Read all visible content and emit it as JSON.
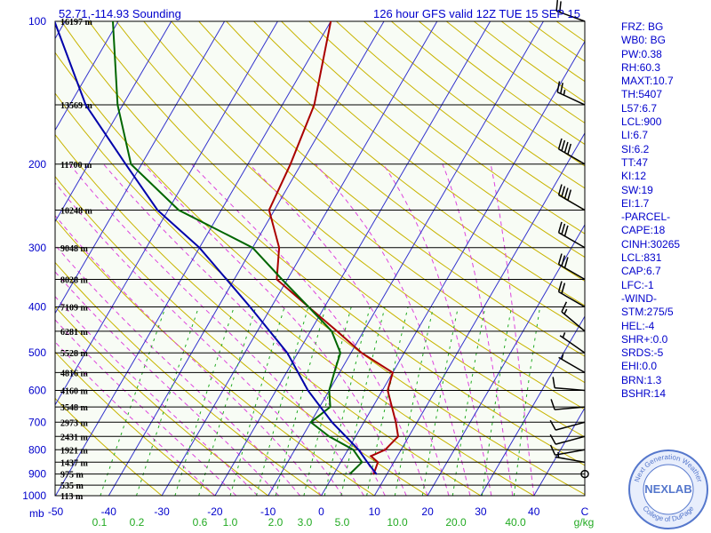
{
  "header": {
    "location": "52.71,-114.93 Sounding",
    "valid": "126 hour GFS valid 12Z TUE 15 SEP 15"
  },
  "colors": {
    "background": "#f8fcf5",
    "temperature": "#aa0000",
    "dewpoint": "#006600",
    "parcel": "#0000aa",
    "isobar": "#000000",
    "isotherm": "#3333cc",
    "dry_adiabat": "#c8b400",
    "moist_adiabat": "#dd44dd",
    "mixing_ratio": "#22aa22",
    "text": "#0000cc"
  },
  "indices": [
    "FRZ: BG",
    "WB0: BG",
    "PW:0.38",
    "RH:60.3",
    "MAXT:10.7",
    "TH:5407",
    "L57:6.7",
    "LCL:900",
    "LI:6.7",
    "SI:6.2",
    "TT:47",
    "KI:12",
    "SW:19",
    "EI:1.7",
    "-PARCEL-",
    "CAPE:18",
    "CINH:30265",
    "LCL:831",
    "CAP:6.7",
    "LFC:-1",
    "-WIND-",
    "STM:275/5",
    "HEL:-4",
    "SHR+:0.0",
    "SRDS:-5",
    "EHI:0.0",
    "BRN:1.3",
    "BSHR:14"
  ],
  "logo": {
    "top": "Next Generation Weather",
    "center": "NEXLAB",
    "bottom": "College of DuPage"
  },
  "chart_data": {
    "type": "skew-t",
    "title": "126 hour GFS valid 12Z TUE 15 SEP 15",
    "xlabel": "C",
    "ylabel": "mb",
    "ylim": [
      1000,
      100
    ],
    "xlim": [
      -50,
      50
    ],
    "log_pressure": true,
    "pressure_ticks": [
      100,
      200,
      300,
      400,
      500,
      600,
      700,
      800,
      900,
      1000
    ],
    "temperature_ticks": [
      -50,
      -40,
      -30,
      -20,
      -10,
      0,
      10,
      20,
      30,
      40
    ],
    "mixing_ratio_labels": [
      "0.1",
      "0.2",
      "0.6",
      "1.0",
      "2.0",
      "3.0",
      "5.0",
      "10.0",
      "20.0",
      "40.0",
      "g/kg"
    ],
    "height_labels": [
      {
        "p": 100,
        "label": "16197 m"
      },
      {
        "p": 150,
        "label": "13569 m"
      },
      {
        "p": 200,
        "label": "11700 m"
      },
      {
        "p": 250,
        "label": "10248 m"
      },
      {
        "p": 300,
        "label": "9048 m"
      },
      {
        "p": 350,
        "label": "8028 m"
      },
      {
        "p": 400,
        "label": "7109 m"
      },
      {
        "p": 450,
        "label": "6281 m"
      },
      {
        "p": 500,
        "label": "5528 m"
      },
      {
        "p": 550,
        "label": "4816 m"
      },
      {
        "p": 600,
        "label": "4160 m"
      },
      {
        "p": 650,
        "label": "3548 m"
      },
      {
        "p": 700,
        "label": "2973 m"
      },
      {
        "p": 750,
        "label": "2431 m"
      },
      {
        "p": 800,
        "label": "1921 m"
      },
      {
        "p": 850,
        "label": "1437 m"
      },
      {
        "p": 900,
        "label": "975 m"
      },
      {
        "p": 950,
        "label": "535 m"
      },
      {
        "p": 1000,
        "label": "113 m"
      }
    ],
    "series": [
      {
        "name": "temperature",
        "points": [
          [
            900,
            7.5
          ],
          [
            850,
            7
          ],
          [
            825,
            5
          ],
          [
            800,
            7
          ],
          [
            750,
            8
          ],
          [
            700,
            6
          ],
          [
            600,
            1
          ],
          [
            550,
            0
          ],
          [
            500,
            -8
          ],
          [
            450,
            -15
          ],
          [
            400,
            -23
          ],
          [
            350,
            -32
          ],
          [
            300,
            -35
          ],
          [
            250,
            -41
          ],
          [
            200,
            -42
          ],
          [
            150,
            -44
          ],
          [
            100,
            -50
          ]
        ]
      },
      {
        "name": "dewpoint",
        "points": [
          [
            900,
            3
          ],
          [
            850,
            4
          ],
          [
            800,
            1
          ],
          [
            750,
            -5
          ],
          [
            700,
            -10
          ],
          [
            650,
            -8
          ],
          [
            600,
            -10
          ],
          [
            550,
            -11
          ],
          [
            500,
            -12
          ],
          [
            450,
            -16
          ],
          [
            400,
            -23
          ],
          [
            350,
            -31
          ],
          [
            300,
            -40
          ],
          [
            250,
            -58
          ],
          [
            200,
            -72
          ],
          [
            150,
            -81
          ],
          [
            100,
            -91
          ]
        ]
      },
      {
        "name": "parcel",
        "points": [
          [
            900,
            8
          ],
          [
            850,
            5
          ],
          [
            800,
            2
          ],
          [
            700,
            -6
          ],
          [
            600,
            -14
          ],
          [
            500,
            -22
          ],
          [
            400,
            -34
          ],
          [
            300,
            -50
          ],
          [
            250,
            -62
          ],
          [
            200,
            -73
          ],
          [
            150,
            -87
          ],
          [
            100,
            -102
          ]
        ]
      }
    ],
    "wind_barbs": [
      {
        "p": 900,
        "dir": 290,
        "kt": 0
      },
      {
        "p": 850,
        "dir": 280,
        "kt": 5
      },
      {
        "p": 800,
        "dir": 260,
        "kt": 10
      },
      {
        "p": 750,
        "dir": 255,
        "kt": 10
      },
      {
        "p": 700,
        "dir": 255,
        "kt": 10
      },
      {
        "p": 650,
        "dir": 265,
        "kt": 10
      },
      {
        "p": 600,
        "dir": 275,
        "kt": 10
      },
      {
        "p": 550,
        "dir": 300,
        "kt": 5
      },
      {
        "p": 500,
        "dir": 305,
        "kt": 5
      },
      {
        "p": 450,
        "dir": 310,
        "kt": 15
      },
      {
        "p": 400,
        "dir": 300,
        "kt": 20
      },
      {
        "p": 350,
        "dir": 300,
        "kt": 30
      },
      {
        "p": 300,
        "dir": 300,
        "kt": 30
      },
      {
        "p": 250,
        "dir": 300,
        "kt": 40
      },
      {
        "p": 200,
        "dir": 300,
        "kt": 40
      },
      {
        "p": 150,
        "dir": 295,
        "kt": 25
      },
      {
        "p": 100,
        "dir": 290,
        "kt": 20
      }
    ]
  }
}
